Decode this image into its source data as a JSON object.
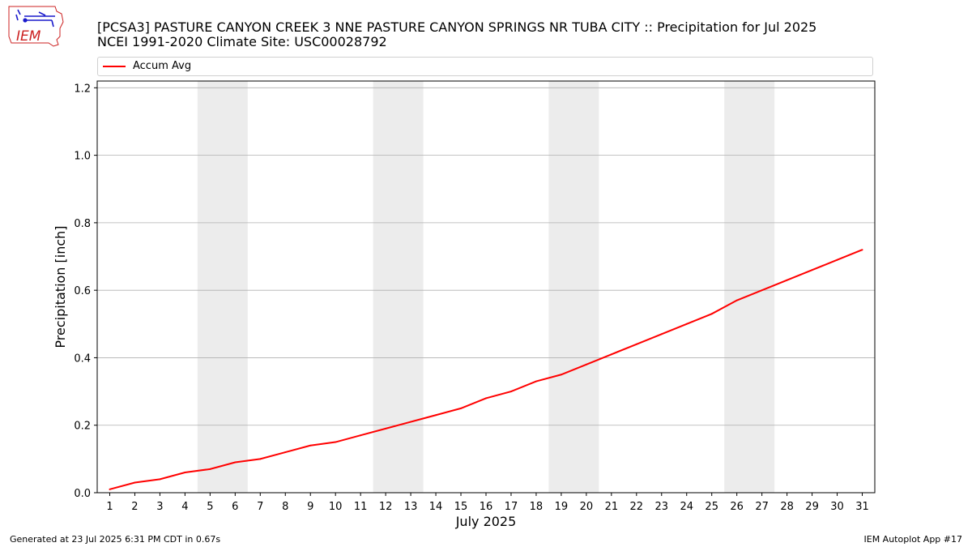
{
  "header": {
    "title_line1": "[PCSA3] PASTURE CANYON CREEK 3 NNE PASTURE CANYON SPRINGS NR TUBA CITY :: Precipitation for Jul 2025",
    "title_line2": "NCEI 1991-2020 Climate Site: USC00028792",
    "logo_text": "IEM"
  },
  "footer": {
    "generated": "Generated at 23 Jul 2025 6:31 PM CDT in 0.67s",
    "app": "IEM Autoplot App #17"
  },
  "colors": {
    "line": "#ff0000",
    "weekend_band": "#ececec",
    "grid": "#b0b0b0",
    "logo": "#1a1acc",
    "logo_outline": "#cc2222"
  },
  "chart_data": {
    "type": "line",
    "title": "",
    "xlabel": "July 2025",
    "ylabel": "Precipitation [inch]",
    "x": [
      1,
      2,
      3,
      4,
      5,
      6,
      7,
      8,
      9,
      10,
      11,
      12,
      13,
      14,
      15,
      16,
      17,
      18,
      19,
      20,
      21,
      22,
      23,
      24,
      25,
      26,
      27,
      28,
      29,
      30,
      31
    ],
    "xlim": [
      0.5,
      31.5
    ],
    "ylim": [
      0,
      1.22
    ],
    "yticks": [
      "0.0",
      "0.2",
      "0.4",
      "0.6",
      "0.8",
      "1.0",
      "1.2"
    ],
    "ytick_values": [
      0,
      0.2,
      0.4,
      0.6,
      0.8,
      1.0,
      1.2
    ],
    "xticks": [
      "1",
      "2",
      "3",
      "4",
      "5",
      "6",
      "7",
      "8",
      "9",
      "10",
      "11",
      "12",
      "13",
      "14",
      "15",
      "16",
      "17",
      "18",
      "19",
      "20",
      "21",
      "22",
      "23",
      "24",
      "25",
      "26",
      "27",
      "28",
      "29",
      "30",
      "31"
    ],
    "grid": "horizontal",
    "legend_position": "top",
    "shaded_day_ranges": [
      [
        5,
        6
      ],
      [
        12,
        13
      ],
      [
        19,
        20
      ],
      [
        26,
        27
      ]
    ],
    "series": [
      {
        "name": "Accum Avg",
        "values": [
          0.01,
          0.03,
          0.04,
          0.06,
          0.07,
          0.09,
          0.1,
          0.12,
          0.14,
          0.15,
          0.17,
          0.19,
          0.21,
          0.23,
          0.25,
          0.28,
          0.3,
          0.33,
          0.35,
          0.38,
          0.41,
          0.44,
          0.47,
          0.5,
          0.53,
          0.57,
          0.6,
          0.63,
          0.66,
          0.69,
          0.72
        ]
      }
    ]
  }
}
